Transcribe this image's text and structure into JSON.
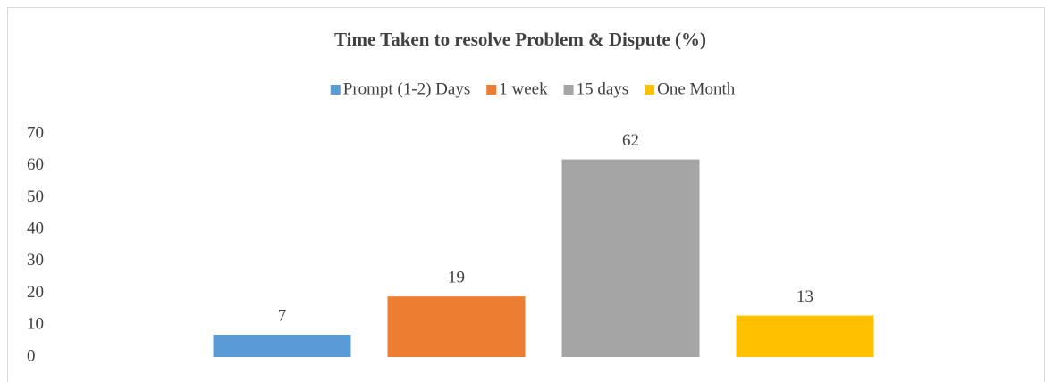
{
  "chart_data": {
    "type": "bar",
    "title": "Time Taken to resolve Problem & Dispute (%)",
    "categories": [
      null
    ],
    "series": [
      {
        "name": "Prompt (1-2) Days",
        "color": "#5b9bd5",
        "values": [
          7
        ]
      },
      {
        "name": "1 week",
        "color": "#ed7d31",
        "values": [
          19
        ]
      },
      {
        "name": "15 days",
        "color": "#a5a5a5",
        "values": [
          62
        ]
      },
      {
        "name": "One Month",
        "color": "#ffc000",
        "values": [
          13
        ]
      }
    ],
    "ylim": [
      0,
      70
    ],
    "yticks": [
      0,
      10,
      20,
      30,
      40,
      50,
      60,
      70
    ],
    "grid": false,
    "legend": "top"
  }
}
